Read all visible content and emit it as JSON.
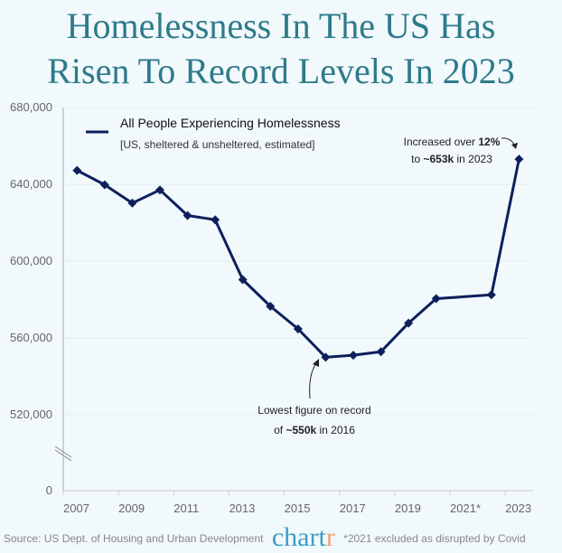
{
  "title_line1": "Homelessness In The US Has",
  "title_line2": "Risen To Record Levels In 2023",
  "chart_data": {
    "type": "line",
    "title": "Homelessness In The US Has Risen To Record Levels In 2023",
    "x": [
      2007,
      2008,
      2009,
      2010,
      2011,
      2012,
      2013,
      2014,
      2015,
      2016,
      2017,
      2018,
      2019,
      2020,
      2022,
      2023
    ],
    "series": [
      {
        "name": "All People Experiencing Homelessness",
        "subtitle": "[US, sheltered & unsheltered, estimated]",
        "values": [
          647258,
          639784,
          630227,
          637077,
          623788,
          621553,
          590364,
          576450,
          564708,
          549928,
          550996,
          552830,
          567715,
          580466,
          582462,
          653104
        ]
      }
    ],
    "color": "#0d1f5c",
    "y_ticks": [
      "680,000",
      "640,000",
      "600,000",
      "560,000",
      "520,000",
      "0"
    ],
    "y_tick_values": [
      680000,
      640000,
      600000,
      560000,
      520000,
      0
    ],
    "x_ticks": [
      "2007",
      "2009",
      "2011",
      "2013",
      "2015",
      "2017",
      "2019",
      "2021*",
      "2023"
    ],
    "ylim": [
      500000,
      680000
    ],
    "y_axis_break": true,
    "grid": true,
    "legend_position": "top-left",
    "annotations": [
      {
        "lines": [
          "Increased over 12%",
          "to ~653k in 2023"
        ],
        "bold": [
          "12%",
          "~653k"
        ],
        "year": 2023
      },
      {
        "lines": [
          "Lowest figure on record",
          "of ~550k in 2016"
        ],
        "bold": [
          "~550k"
        ],
        "year": 2016
      }
    ]
  },
  "footer": {
    "source": "Source: US Dept. of Housing and Urban Development",
    "logo": "chartr",
    "note": "*2021 excluded as disrupted by Covid"
  }
}
